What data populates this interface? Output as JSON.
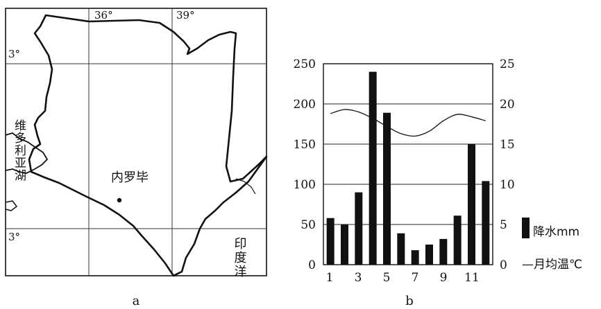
{
  "map_a": {
    "caption": "a",
    "lon_labels": [
      "36°",
      "39°"
    ],
    "lat_labels": [
      "3°",
      "3°"
    ],
    "city": "内罗毕",
    "lake": "维多利亚湖",
    "ocean": "印度洋"
  },
  "chart_b": {
    "caption": "b",
    "left_ticks": [
      "250",
      "200",
      "150",
      "100",
      "50",
      "0"
    ],
    "right_ticks": [
      "25",
      "20",
      "15",
      "10",
      "5",
      "0"
    ],
    "x_ticks": [
      "1",
      "3",
      "5",
      "7",
      "9",
      "11"
    ],
    "legend_precip": "降水mm",
    "legend_temp": "—月均温℃"
  },
  "chart_data": {
    "type": "bar",
    "categories": [
      1,
      2,
      3,
      4,
      5,
      6,
      7,
      8,
      9,
      10,
      11,
      12
    ],
    "series": [
      {
        "name": "降水mm",
        "type": "bar",
        "axis": "left",
        "values": [
          58,
          50,
          90,
          240,
          189,
          39,
          18,
          25,
          32,
          61,
          150,
          104
        ]
      },
      {
        "name": "月均温℃",
        "type": "line",
        "axis": "right",
        "values": [
          18.8,
          19.3,
          19.0,
          18.2,
          17.2,
          16.3,
          16.0,
          16.6,
          17.9,
          18.7,
          18.4,
          17.9
        ]
      }
    ],
    "ylim_left": [
      0,
      250
    ],
    "ylim_right": [
      0,
      25
    ],
    "x_tick_labels": [
      "1",
      "3",
      "5",
      "7",
      "9",
      "11"
    ],
    "legend_placement": "right"
  }
}
